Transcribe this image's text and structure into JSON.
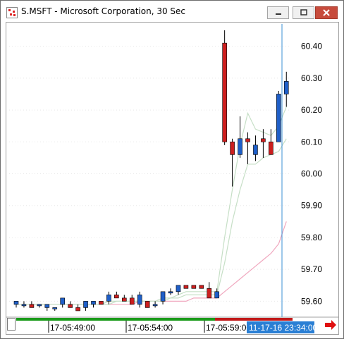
{
  "window": {
    "title": "S.MSFT - Microsoft Corporation, 30 Sec",
    "icon": "chart-app-icon"
  },
  "colors": {
    "up_candle": "#1f5fc8",
    "down_candle": "#cc1f1f",
    "ma_fast": "#c6dfc6",
    "ma_slow": "#f0a7be",
    "crosshair": "#3a8fd6",
    "volume_up": "#1a9a1a",
    "volume_down": "#c01818",
    "time_highlight": "#2a7fd4"
  },
  "chart_data": {
    "type": "candlestick",
    "y_ticks": [
      "60.40",
      "60.30",
      "60.20",
      "60.10",
      "60.00",
      "59.90",
      "59.80",
      "59.70",
      "59.60"
    ],
    "ylim": [
      59.55,
      60.47
    ],
    "x_tick_labels": [
      "17-05:49:00",
      "17-05:54:00",
      "17-05:59:00"
    ],
    "crosshair_time_label": "11-17-16 23:34:00",
    "candles": [
      {
        "o": 59.59,
        "h": 59.6,
        "l": 59.58,
        "c": 59.6
      },
      {
        "o": 59.59,
        "h": 59.6,
        "l": 59.58,
        "c": 59.59
      },
      {
        "o": 59.59,
        "h": 59.6,
        "l": 59.58,
        "c": 59.58
      },
      {
        "o": 59.59,
        "h": 59.59,
        "l": 59.58,
        "c": 59.59
      },
      {
        "o": 59.58,
        "h": 59.59,
        "l": 59.57,
        "c": 59.59
      },
      {
        "o": 59.58,
        "h": 59.58,
        "l": 59.57,
        "c": 59.58
      },
      {
        "o": 59.59,
        "h": 59.61,
        "l": 59.58,
        "c": 59.61
      },
      {
        "o": 59.59,
        "h": 59.6,
        "l": 59.58,
        "c": 59.58
      },
      {
        "o": 59.58,
        "h": 59.59,
        "l": 59.57,
        "c": 59.57
      },
      {
        "o": 59.58,
        "h": 59.6,
        "l": 59.57,
        "c": 59.6
      },
      {
        "o": 59.59,
        "h": 59.6,
        "l": 59.58,
        "c": 59.6
      },
      {
        "o": 59.6,
        "h": 59.6,
        "l": 59.59,
        "c": 59.59
      },
      {
        "o": 59.6,
        "h": 59.63,
        "l": 59.59,
        "c": 59.62
      },
      {
        "o": 59.62,
        "h": 59.63,
        "l": 59.61,
        "c": 59.61
      },
      {
        "o": 59.61,
        "h": 59.62,
        "l": 59.6,
        "c": 59.6
      },
      {
        "o": 59.61,
        "h": 59.62,
        "l": 59.59,
        "c": 59.59
      },
      {
        "o": 59.59,
        "h": 59.63,
        "l": 59.58,
        "c": 59.62
      },
      {
        "o": 59.6,
        "h": 59.6,
        "l": 59.58,
        "c": 59.58
      },
      {
        "o": 59.59,
        "h": 59.6,
        "l": 59.58,
        "c": 59.59
      },
      {
        "o": 59.6,
        "h": 59.63,
        "l": 59.59,
        "c": 59.63
      },
      {
        "o": 59.63,
        "h": 59.64,
        "l": 59.62,
        "c": 59.63
      },
      {
        "o": 59.63,
        "h": 59.65,
        "l": 59.62,
        "c": 59.65
      },
      {
        "o": 59.65,
        "h": 59.65,
        "l": 59.64,
        "c": 59.64
      },
      {
        "o": 59.65,
        "h": 59.65,
        "l": 59.64,
        "c": 59.64
      },
      {
        "o": 59.65,
        "h": 59.65,
        "l": 59.64,
        "c": 59.64
      },
      {
        "o": 59.64,
        "h": 59.66,
        "l": 59.61,
        "c": 59.61
      },
      {
        "o": 59.61,
        "h": 59.64,
        "l": 59.61,
        "c": 59.63
      },
      {
        "o": 60.41,
        "h": 60.45,
        "l": 60.09,
        "c": 60.1
      },
      {
        "o": 60.1,
        "h": 60.11,
        "l": 59.96,
        "c": 60.06
      },
      {
        "o": 60.06,
        "h": 60.18,
        "l": 60.05,
        "c": 60.11
      },
      {
        "o": 60.11,
        "h": 60.13,
        "l": 60.03,
        "c": 60.1
      },
      {
        "o": 60.06,
        "h": 60.12,
        "l": 60.04,
        "c": 60.09
      },
      {
        "o": 60.11,
        "h": 60.14,
        "l": 60.05,
        "c": 60.1
      },
      {
        "o": 60.1,
        "h": 60.14,
        "l": 60.06,
        "c": 60.06
      },
      {
        "o": 60.1,
        "h": 60.26,
        "l": 60.1,
        "c": 60.25
      },
      {
        "o": 60.25,
        "h": 60.32,
        "l": 60.21,
        "c": 60.29
      }
    ],
    "ma_fast": [
      59.59,
      59.59,
      59.59,
      59.59,
      59.59,
      59.59,
      59.59,
      59.59,
      59.59,
      59.59,
      59.59,
      59.59,
      59.6,
      59.6,
      59.6,
      59.6,
      59.6,
      59.6,
      59.6,
      59.61,
      59.61,
      59.62,
      59.63,
      59.63,
      59.63,
      59.63,
      59.63,
      59.8,
      59.95,
      60.09,
      60.19,
      60.14,
      60.13,
      60.12,
      60.15,
      60.21
    ],
    "ma_green2": [
      59.59,
      59.59,
      59.59,
      59.59,
      59.59,
      59.59,
      59.59,
      59.59,
      59.59,
      59.59,
      59.59,
      59.59,
      59.59,
      59.6,
      59.6,
      59.6,
      59.6,
      59.6,
      59.6,
      59.6,
      59.61,
      59.61,
      59.62,
      59.62,
      59.62,
      59.62,
      59.62,
      59.72,
      59.85,
      59.95,
      60.03,
      60.03,
      60.05,
      60.06,
      60.07,
      60.11
    ],
    "ma_slow": [
      59.59,
      59.59,
      59.59,
      59.59,
      59.59,
      59.59,
      59.59,
      59.59,
      59.59,
      59.59,
      59.59,
      59.59,
      59.59,
      59.59,
      59.59,
      59.59,
      59.6,
      59.6,
      59.6,
      59.6,
      59.6,
      59.6,
      59.6,
      59.61,
      59.61,
      59.61,
      59.61,
      59.63,
      59.65,
      59.67,
      59.69,
      59.71,
      59.73,
      59.75,
      59.78,
      59.85
    ]
  },
  "icons": {
    "minimize": "minimize-icon",
    "maximize": "maximize-icon",
    "close": "close-icon",
    "scroll_right": "scroll-right-arrow-icon"
  }
}
